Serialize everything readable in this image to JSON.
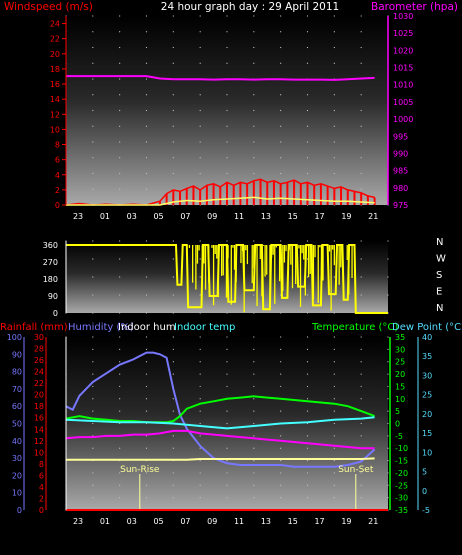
{
  "colors": {
    "wind": "#ff0000",
    "wind_avg": "#ffff66",
    "pressure": "#ff00ff",
    "direction": "#ffff00",
    "rain": "#ff0000",
    "humidity": "#7777ff",
    "indoor_hum": "#ffffff",
    "indoor_temp": "#44ffff",
    "temperature": "#00ff00",
    "dew_point": "#55ddff",
    "sun_marker": "#ffff99",
    "grid_dot": "#c0c0c0",
    "axis_tick": "#ffffff"
  },
  "chart_data": [
    {
      "type": "line",
      "panel": "wind_pressure",
      "title": "24 hour graph day : 29 April 2011",
      "ylabel_left": "Windspeed (m/s)",
      "ylabel_right": "Barometer (hpa)",
      "left_ticks": [
        "0",
        "2",
        "4",
        "6",
        "8",
        "10",
        "12",
        "14",
        "16",
        "18",
        "20",
        "22",
        "24"
      ],
      "right_ticks": [
        "975",
        "980",
        "985",
        "990",
        "995",
        "1000",
        "1005",
        "1010",
        "1015",
        "1020",
        "1025",
        "1030"
      ],
      "x_ticks": [
        "23",
        "01",
        "03",
        "05",
        "07",
        "09",
        "11",
        "13",
        "15",
        "17",
        "19",
        "21"
      ],
      "ylim_left": [
        0,
        25
      ],
      "ylim_right": [
        975,
        1030
      ],
      "xlim": [
        0,
        24
      ],
      "series": [
        {
          "name": "Windspeed",
          "axis": "left",
          "x": [
            0,
            1,
            2,
            3,
            4,
            5,
            6,
            7,
            7.5,
            8,
            8.5,
            9,
            9.5,
            10,
            10.5,
            11,
            11.5,
            12,
            12.5,
            13,
            13.5,
            14,
            14.5,
            15,
            15.5,
            16,
            16.5,
            17,
            17.5,
            18,
            18.5,
            19,
            19.5,
            20,
            20.5,
            21,
            21.5,
            22,
            22.5,
            23
          ],
          "y": [
            0,
            0.2,
            0,
            0.1,
            0,
            0.1,
            0,
            0.5,
            1.5,
            2,
            1.8,
            2.2,
            2.5,
            2,
            2.6,
            2.8,
            2.4,
            3,
            2.6,
            3,
            2.8,
            3.2,
            3.4,
            3,
            3.2,
            2.8,
            3,
            3.3,
            2.8,
            3,
            2.6,
            2.8,
            2.5,
            2.2,
            2.4,
            2,
            1.8,
            1.6,
            1.2,
            1
          ]
        },
        {
          "name": "Windspeed average",
          "axis": "left",
          "x": [
            0,
            7,
            8,
            9,
            10,
            11,
            12,
            13,
            14,
            15,
            16,
            17,
            18,
            19,
            20,
            21,
            22,
            23
          ],
          "y": [
            0,
            0,
            0.4,
            0.6,
            0.5,
            0.7,
            0.8,
            0.9,
            1,
            0.8,
            0.9,
            0.8,
            0.7,
            0.6,
            0.5,
            0.5,
            0.4,
            0.3
          ]
        },
        {
          "name": "Barometer",
          "axis": "right",
          "x": [
            0,
            2,
            4,
            5,
            6,
            7,
            8,
            9,
            10,
            11,
            12,
            13,
            14,
            15,
            16,
            17,
            18,
            19,
            20,
            21,
            22,
            23
          ],
          "y": [
            1012.5,
            1012.5,
            1012.5,
            1012.5,
            1012.5,
            1011.8,
            1011.6,
            1011.6,
            1011.6,
            1011.5,
            1011.6,
            1011.6,
            1011.5,
            1011.6,
            1011.6,
            1011.5,
            1011.5,
            1011.5,
            1011.4,
            1011.6,
            1011.8,
            1012.0
          ]
        }
      ]
    },
    {
      "type": "line",
      "panel": "wind_direction",
      "left_ticks": [
        "0",
        "90",
        "180",
        "270",
        "360"
      ],
      "right_ticks": [
        "N",
        "E",
        "S",
        "W",
        "N"
      ],
      "ylim": [
        0,
        360
      ],
      "xlim": [
        0,
        24
      ],
      "series": [
        {
          "name": "Wind direction",
          "x": [
            0,
            7.2,
            7.3,
            8.2,
            8.3,
            8.6,
            8.7,
            9.0,
            9.1,
            10.1,
            10.2,
            10.6,
            10.7,
            11.3,
            11.4,
            12.0,
            12.1,
            12.6,
            12.7,
            13.2,
            13.3,
            14.0,
            14.1,
            14.6,
            14.7,
            15.2,
            15.3,
            16.0,
            16.1,
            16.5,
            16.6,
            17.2,
            17.3,
            17.8,
            17.9,
            18.3,
            18.4,
            19.0,
            19.1,
            19.5,
            19.6,
            20.1,
            20.2,
            20.6,
            20.7,
            21.0,
            21.1,
            21.5,
            21.6,
            24
          ],
          "y": [
            360,
            360,
            360,
            360,
            150,
            150,
            360,
            360,
            30,
            30,
            360,
            360,
            90,
            90,
            360,
            360,
            60,
            60,
            360,
            360,
            120,
            120,
            360,
            360,
            20,
            20,
            360,
            360,
            80,
            80,
            360,
            360,
            140,
            140,
            360,
            360,
            40,
            40,
            360,
            360,
            100,
            100,
            360,
            360,
            70,
            70,
            360,
            360,
            0,
            0
          ]
        }
      ]
    },
    {
      "type": "line",
      "panel": "rain_humidity_temperature",
      "legend": [
        "Rainfall (mm)",
        "Humidity (%)",
        "Indoor hum",
        "Indoor temp",
        "Temperature (°C)",
        "Dew Point (°C)"
      ],
      "rain_ticks": [
        "0",
        "2",
        "4",
        "6",
        "8",
        "10",
        "12",
        "14",
        "16",
        "18",
        "20",
        "22",
        "24",
        "26",
        "28",
        "30"
      ],
      "humidity_ticks": [
        "0",
        "10",
        "20",
        "30",
        "40",
        "50",
        "60",
        "70",
        "80",
        "90",
        "100"
      ],
      "temp_ticks": [
        "-35",
        "-30",
        "-25",
        "-20",
        "-15",
        "-10",
        "-5",
        "0",
        "5",
        "10",
        "15",
        "20",
        "25",
        "30",
        "35"
      ],
      "dew_ticks": [
        "-5",
        "0",
        "5",
        "10",
        "15",
        "20",
        "25",
        "30",
        "35",
        "40"
      ],
      "x_ticks": [
        "23",
        "01",
        "03",
        "05",
        "07",
        "09",
        "11",
        "13",
        "15",
        "17",
        "19",
        "21"
      ],
      "humidity_range": [
        0,
        100
      ],
      "temp_range": [
        -35,
        35
      ],
      "xlim": [
        0,
        24
      ],
      "markers": [
        {
          "label": "Sun-Rise",
          "x": 5.5
        },
        {
          "label": "Sun-Set",
          "x": 21.6
        }
      ],
      "series": [
        {
          "name": "Humidity",
          "axis": "humidity",
          "x": [
            0,
            0.5,
            1,
            2,
            3,
            4,
            5,
            5.5,
            6,
            6.5,
            7,
            7.5,
            8,
            8.5,
            9,
            10,
            11,
            12,
            13,
            14,
            15,
            16,
            17,
            18,
            19,
            20,
            21,
            22,
            23
          ],
          "y": [
            60,
            58,
            66,
            74,
            79,
            84,
            87,
            89,
            91,
            91,
            90,
            88,
            70,
            55,
            47,
            37,
            30,
            27,
            26,
            26,
            26,
            26,
            25,
            25,
            25,
            25,
            26,
            28,
            35
          ]
        },
        {
          "name": "Indoor hum",
          "axis": "humidity",
          "x": [
            0,
            4,
            8,
            9,
            10,
            12,
            14,
            16,
            18,
            20,
            22,
            23
          ],
          "y": [
            29,
            29,
            29,
            29,
            29.5,
            29.5,
            29.5,
            29.5,
            29.5,
            29.5,
            29.5,
            29.8
          ]
        },
        {
          "name": "Temperature",
          "axis": "temp",
          "x": [
            0,
            1,
            2,
            3,
            4,
            5,
            6,
            7,
            7.5,
            8,
            8.5,
            9,
            10,
            11,
            12,
            13,
            14,
            15,
            16,
            17,
            18,
            19,
            20,
            21,
            22,
            23
          ],
          "y": [
            2,
            3,
            2,
            1.5,
            1,
            1,
            0.5,
            0.5,
            0.5,
            1,
            3,
            6,
            8,
            9,
            10,
            10.5,
            11,
            10.5,
            10,
            9.5,
            9,
            8.5,
            8,
            7,
            5,
            3
          ]
        },
        {
          "name": "Indoor temp",
          "axis": "temp",
          "x": [
            0,
            2,
            4,
            6,
            8,
            10,
            12,
            14,
            16,
            18,
            20,
            22,
            23
          ],
          "y": [
            1.5,
            1,
            0.5,
            0.5,
            0,
            -1,
            -2,
            -1,
            0,
            0.5,
            1.5,
            2,
            2.5
          ]
        },
        {
          "name": "Dew Point",
          "axis": "temp",
          "x": [
            0,
            1,
            2,
            3,
            4,
            5,
            6,
            7,
            8,
            9,
            10,
            11,
            12,
            13,
            14,
            15,
            16,
            17,
            18,
            19,
            20,
            21,
            22,
            23
          ],
          "y": [
            -6,
            -5.5,
            -5.5,
            -5,
            -5,
            -4.5,
            -4.5,
            -4,
            -3,
            -3,
            -4,
            -4.5,
            -5,
            -5.5,
            -6,
            -6.5,
            -7,
            -7.5,
            -8,
            -8.5,
            -9,
            -9.5,
            -10,
            -10
          ]
        }
      ]
    }
  ]
}
